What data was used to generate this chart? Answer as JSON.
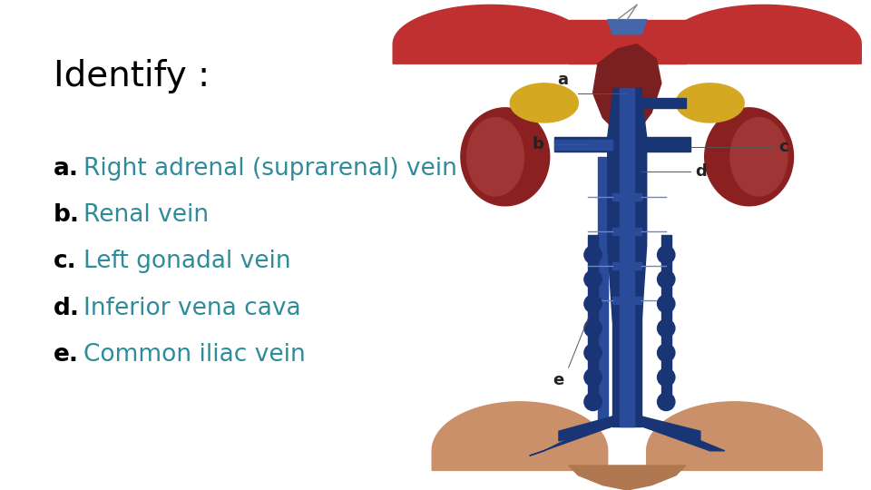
{
  "title": "Identify :",
  "title_color": "#000000",
  "title_fontsize": 28,
  "bg_color": "#ffffff",
  "items": [
    {
      "label": "a.",
      "text": "Right adrenal (suprarenal) vein",
      "color": "#2e8b9a"
    },
    {
      "label": "b.",
      "text": "Renal vein",
      "color": "#2e8b9a"
    },
    {
      "label": "c.",
      "text": "Left gonadal vein",
      "color": "#2e8b9a"
    },
    {
      "label": "d.",
      "text": "Inferior vena cava",
      "color": "#2e8b9a"
    },
    {
      "label": "e.",
      "text": "Common iliac vein",
      "color": "#2e8b9a"
    }
  ],
  "label_color": "#000000",
  "item_fontsize": 19,
  "annotation_color": "#222222",
  "annotation_fontsize": 13,
  "teal_color": "#2e8b9a",
  "blue_vessel": "#1a3575",
  "blue_vessel_light": "#2a4a9a",
  "red_organ": "#c03030",
  "red_dark": "#8b2020",
  "yellow_adrenal": "#d4a820",
  "skin_color": "#c9906a",
  "skin_dark": "#b07850"
}
